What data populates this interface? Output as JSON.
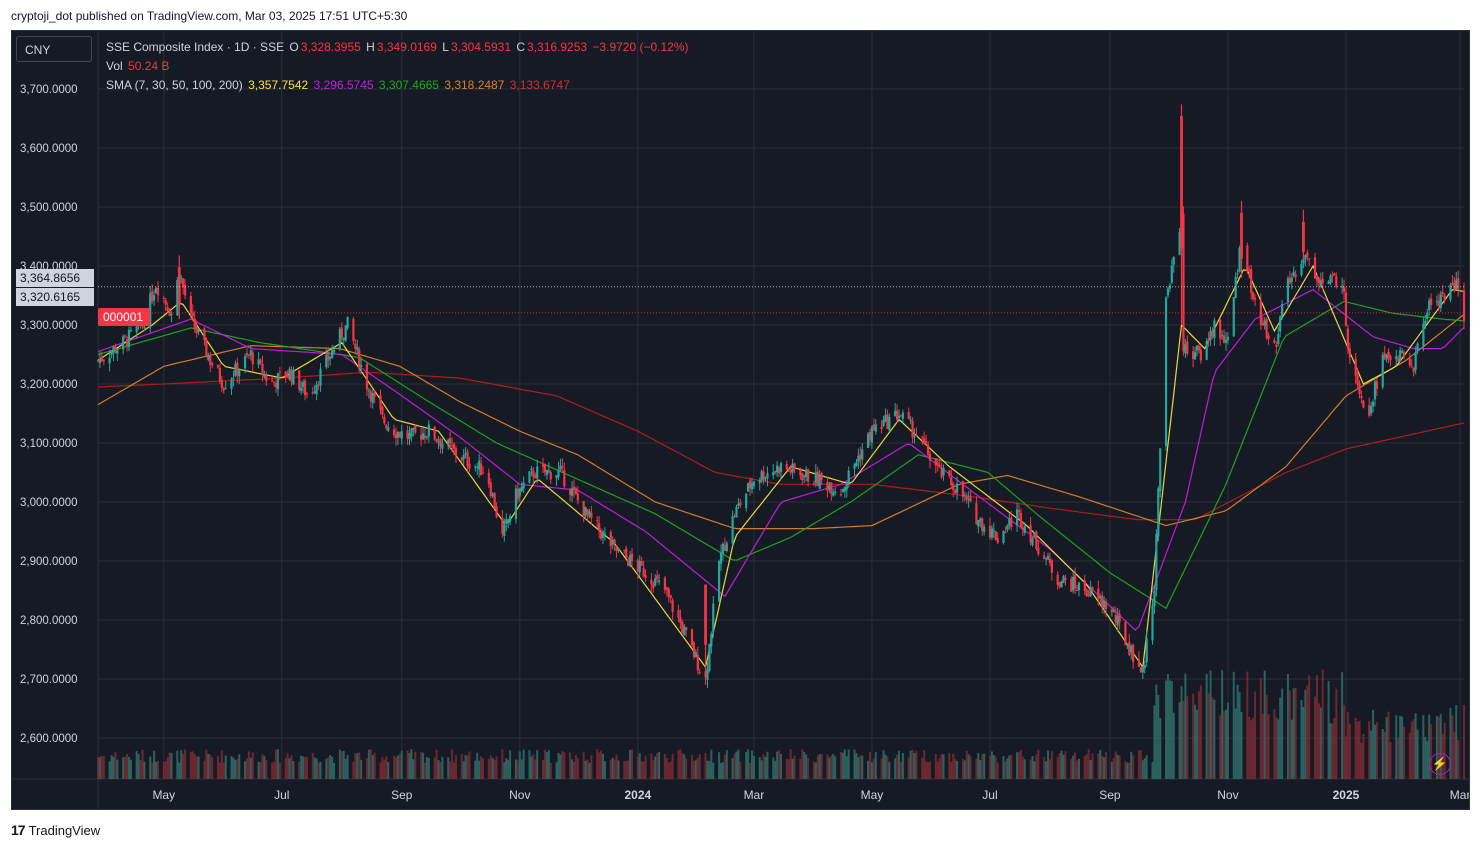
{
  "header": {
    "publisher_line": "cryptoji_dot published on TradingView.com, Mar 03, 2025 17:51 UTC+5:30"
  },
  "currency": "CNY",
  "legend": {
    "symbol": "SSE Composite Index · 1D · SSE",
    "o_label": "O",
    "o": "3,328.3955",
    "h_label": "H",
    "h": "3,349.0169",
    "l_label": "L",
    "l": "3,304.5931",
    "c_label": "C",
    "c": "3,316.9253",
    "change": "−3.9720 (−0.12%)",
    "vol_label": "Vol",
    "vol": "50.24 B",
    "sma_label": "SMA (7, 30, 50, 100, 200)",
    "sma_values": [
      "3,357.7542",
      "3,296.5745",
      "3,307.4665",
      "3,318.2487",
      "3,133.6747"
    ]
  },
  "badges": {
    "high_label": "3,364.8656",
    "low_label": "3,320.6165",
    "symbol_tag": "000001"
  },
  "brand": {
    "logo": "17",
    "name": "TradingView"
  },
  "colors": {
    "up": "#26a69a",
    "down": "#f23645",
    "sma7": "#f7e13b",
    "sma30": "#c51ee0",
    "sma50": "#1fa81f",
    "sma100": "#d9822b",
    "sma200": "#b71c1c",
    "background": "#161a25"
  },
  "chart_data": {
    "type": "candlestick",
    "y_ticks": [
      "3,700.0000",
      "3,600.0000",
      "3,500.0000",
      "3,400.0000",
      "3,300.0000",
      "3,200.0000",
      "3,100.0000",
      "3,000.0000",
      "2,900.0000",
      "2,800.0000",
      "2,700.0000",
      "2,600.0000"
    ],
    "ylim": [
      2530,
      3745
    ],
    "x_ticks": [
      "May",
      "Jul",
      "Sep",
      "Nov",
      "2024",
      "Mar",
      "May",
      "Jul",
      "Sep",
      "Nov",
      "2025",
      "Mar"
    ],
    "x_range": [
      "2023-03-28",
      "2025-03-03"
    ],
    "x_tick_dates": [
      "2023-05-01",
      "2023-07-01",
      "2023-09-01",
      "2023-11-01",
      "2024-01-01",
      "2024-03-01",
      "2024-05-01",
      "2024-07-01",
      "2024-09-01",
      "2024-11-01",
      "2025-01-01",
      "2025-03-01"
    ],
    "close_path": [
      [
        "2023-03-28",
        3240
      ],
      [
        "2023-04-10",
        3270
      ],
      [
        "2023-04-20",
        3300
      ],
      [
        "2023-04-27",
        3370
      ],
      [
        "2023-05-05",
        3320
      ],
      [
        "2023-05-09",
        3390
      ],
      [
        "2023-05-15",
        3310
      ],
      [
        "2023-05-25",
        3240
      ],
      [
        "2023-06-01",
        3200
      ],
      [
        "2023-06-15",
        3250
      ],
      [
        "2023-06-25",
        3200
      ],
      [
        "2023-07-05",
        3220
      ],
      [
        "2023-07-15",
        3180
      ],
      [
        "2023-07-31",
        3280
      ],
      [
        "2023-08-04",
        3300
      ],
      [
        "2023-08-14",
        3200
      ],
      [
        "2023-08-22",
        3140
      ],
      [
        "2023-08-29",
        3120
      ],
      [
        "2023-09-05",
        3110
      ],
      [
        "2023-09-15",
        3120
      ],
      [
        "2023-09-30",
        3080
      ],
      [
        "2023-10-15",
        3050
      ],
      [
        "2023-10-23",
        2940
      ],
      [
        "2023-10-30",
        3010
      ],
      [
        "2023-11-08",
        3050
      ],
      [
        "2023-11-22",
        3050
      ],
      [
        "2023-12-05",
        2980
      ],
      [
        "2023-12-20",
        2920
      ],
      [
        "2024-01-05",
        2880
      ],
      [
        "2024-01-15",
        2850
      ],
      [
        "2024-01-25",
        2780
      ],
      [
        "2024-02-02",
        2720
      ],
      [
        "2024-02-05",
        2700
      ],
      [
        "2024-02-12",
        2900
      ],
      [
        "2024-02-20",
        2980
      ],
      [
        "2024-03-01",
        3040
      ],
      [
        "2024-03-15",
        3060
      ],
      [
        "2024-04-01",
        3040
      ],
      [
        "2024-04-15",
        3020
      ],
      [
        "2024-05-01",
        3120
      ],
      [
        "2024-05-15",
        3150
      ],
      [
        "2024-05-25",
        3110
      ],
      [
        "2024-06-05",
        3050
      ],
      [
        "2024-06-15",
        3020
      ],
      [
        "2024-06-25",
        2970
      ],
      [
        "2024-07-05",
        2940
      ],
      [
        "2024-07-15",
        2980
      ],
      [
        "2024-07-25",
        2930
      ],
      [
        "2024-08-05",
        2870
      ],
      [
        "2024-08-20",
        2850
      ],
      [
        "2024-09-01",
        2820
      ],
      [
        "2024-09-10",
        2760
      ],
      [
        "2024-09-18",
        2710
      ],
      [
        "2024-09-24",
        2860
      ],
      [
        "2024-09-30",
        3340
      ],
      [
        "2024-10-08",
        3490
      ],
      [
        "2024-10-09",
        3260
      ],
      [
        "2024-10-18",
        3250
      ],
      [
        "2024-10-25",
        3300
      ],
      [
        "2024-11-01",
        3270
      ],
      [
        "2024-11-08",
        3450
      ],
      [
        "2024-11-15",
        3330
      ],
      [
        "2024-11-25",
        3260
      ],
      [
        "2024-12-01",
        3360
      ],
      [
        "2024-12-10",
        3420
      ],
      [
        "2024-12-20",
        3370
      ],
      [
        "2024-12-30",
        3380
      ],
      [
        "2025-01-02",
        3270
      ],
      [
        "2025-01-10",
        3170
      ],
      [
        "2025-01-13",
        3160
      ],
      [
        "2025-01-20",
        3240
      ],
      [
        "2025-01-27",
        3250
      ],
      [
        "2025-02-05",
        3230
      ],
      [
        "2025-02-12",
        3330
      ],
      [
        "2025-02-20",
        3350
      ],
      [
        "2025-02-27",
        3370
      ],
      [
        "2025-03-03",
        3316
      ]
    ],
    "sma7": [
      [
        "2023-03-28",
        3240
      ],
      [
        "2023-04-25",
        3300
      ],
      [
        "2023-05-10",
        3340
      ],
      [
        "2023-06-01",
        3230
      ],
      [
        "2023-07-01",
        3210
      ],
      [
        "2023-08-01",
        3270
      ],
      [
        "2023-08-28",
        3140
      ],
      [
        "2023-09-20",
        3120
      ],
      [
        "2023-10-25",
        2960
      ],
      [
        "2023-11-10",
        3040
      ],
      [
        "2023-12-20",
        2930
      ],
      [
        "2024-02-05",
        2720
      ],
      [
        "2024-02-20",
        2940
      ],
      [
        "2024-03-20",
        3060
      ],
      [
        "2024-04-20",
        3030
      ],
      [
        "2024-05-15",
        3140
      ],
      [
        "2024-06-10",
        3060
      ],
      [
        "2024-07-20",
        2960
      ],
      [
        "2024-08-20",
        2860
      ],
      [
        "2024-09-18",
        2720
      ],
      [
        "2024-10-08",
        3300
      ],
      [
        "2024-10-20",
        3260
      ],
      [
        "2024-11-10",
        3400
      ],
      [
        "2024-11-25",
        3290
      ],
      [
        "2024-12-15",
        3400
      ],
      [
        "2025-01-10",
        3200
      ],
      [
        "2025-01-27",
        3230
      ],
      [
        "2025-02-25",
        3360
      ],
      [
        "2025-03-03",
        3357
      ]
    ],
    "sma30": [
      [
        "2023-03-28",
        3255
      ],
      [
        "2023-05-15",
        3310
      ],
      [
        "2023-06-15",
        3260
      ],
      [
        "2023-08-01",
        3250
      ],
      [
        "2023-09-01",
        3180
      ],
      [
        "2023-10-01",
        3110
      ],
      [
        "2023-11-01",
        3030
      ],
      [
        "2023-12-01",
        3020
      ],
      [
        "2024-01-05",
        2950
      ],
      [
        "2024-02-15",
        2840
      ],
      [
        "2024-03-15",
        3000
      ],
      [
        "2024-04-15",
        3030
      ],
      [
        "2024-05-20",
        3100
      ],
      [
        "2024-06-25",
        3010
      ],
      [
        "2024-08-01",
        2920
      ],
      [
        "2024-09-15",
        2780
      ],
      [
        "2024-10-10",
        3000
      ],
      [
        "2024-10-25",
        3220
      ],
      [
        "2024-11-15",
        3310
      ],
      [
        "2024-12-15",
        3360
      ],
      [
        "2025-01-15",
        3280
      ],
      [
        "2025-02-05",
        3260
      ],
      [
        "2025-02-20",
        3260
      ],
      [
        "2025-03-03",
        3296
      ]
    ],
    "sma50": [
      [
        "2023-03-28",
        3250
      ],
      [
        "2023-05-15",
        3295
      ],
      [
        "2023-06-20",
        3270
      ],
      [
        "2023-08-10",
        3245
      ],
      [
        "2023-09-15",
        3170
      ],
      [
        "2023-10-20",
        3100
      ],
      [
        "2023-11-30",
        3040
      ],
      [
        "2024-01-10",
        2980
      ],
      [
        "2024-02-20",
        2900
      ],
      [
        "2024-03-20",
        2940
      ],
      [
        "2024-04-20",
        3000
      ],
      [
        "2024-05-25",
        3080
      ],
      [
        "2024-06-30",
        3050
      ],
      [
        "2024-07-25",
        2980
      ],
      [
        "2024-09-01",
        2880
      ],
      [
        "2024-09-30",
        2820
      ],
      [
        "2024-10-31",
        3030
      ],
      [
        "2024-11-30",
        3280
      ],
      [
        "2024-12-31",
        3340
      ],
      [
        "2025-01-25",
        3320
      ],
      [
        "2025-02-20",
        3310
      ],
      [
        "2025-03-03",
        3307
      ]
    ],
    "sma100": [
      [
        "2023-03-28",
        3165
      ],
      [
        "2023-05-01",
        3230
      ],
      [
        "2023-06-15",
        3265
      ],
      [
        "2023-07-31",
        3260
      ],
      [
        "2023-08-31",
        3230
      ],
      [
        "2023-10-01",
        3170
      ],
      [
        "2023-11-01",
        3120
      ],
      [
        "2023-12-01",
        3080
      ],
      [
        "2024-01-10",
        3000
      ],
      [
        "2024-02-20",
        2955
      ],
      [
        "2024-04-01",
        2955
      ],
      [
        "2024-05-01",
        2960
      ],
      [
        "2024-06-15",
        3030
      ],
      [
        "2024-07-10",
        3045
      ],
      [
        "2024-08-15",
        3010
      ],
      [
        "2024-09-30",
        2960
      ],
      [
        "2024-10-31",
        2985
      ],
      [
        "2024-12-01",
        3060
      ],
      [
        "2025-01-01",
        3180
      ],
      [
        "2025-02-01",
        3240
      ],
      [
        "2025-03-03",
        3318
      ]
    ],
    "sma200": [
      [
        "2023-03-28",
        3195
      ],
      [
        "2023-05-01",
        3200
      ],
      [
        "2023-07-01",
        3210
      ],
      [
        "2023-08-15",
        3220
      ],
      [
        "2023-10-01",
        3210
      ],
      [
        "2023-11-20",
        3180
      ],
      [
        "2024-01-01",
        3120
      ],
      [
        "2024-02-10",
        3050
      ],
      [
        "2024-03-15",
        3030
      ],
      [
        "2024-05-01",
        3030
      ],
      [
        "2024-06-20",
        3010
      ],
      [
        "2024-07-31",
        2990
      ],
      [
        "2024-09-15",
        2970
      ],
      [
        "2024-10-15",
        2970
      ],
      [
        "2024-12-01",
        3050
      ],
      [
        "2025-01-01",
        3090
      ],
      [
        "2025-03-03",
        3134
      ]
    ],
    "spikes": [
      [
        "2024-10-08",
        3674,
        3300
      ],
      [
        "2024-11-08",
        3510,
        3380
      ],
      [
        "2024-12-10",
        3495,
        3410
      ],
      [
        "2023-05-09",
        3418,
        3310
      ],
      [
        "2024-02-05",
        2690,
        2860
      ]
    ],
    "volume": {
      "baseline": 0.03,
      "surge_start": "2024-09-24",
      "surge_end": "2024-12-31"
    },
    "last_price_lines": [
      3364.8656,
      3320.6165
    ]
  }
}
